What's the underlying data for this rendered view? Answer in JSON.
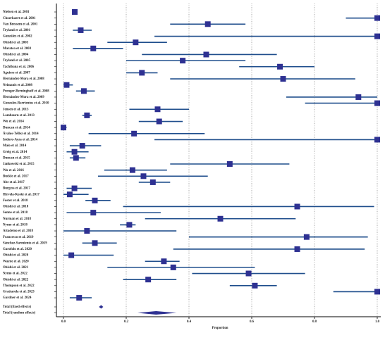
{
  "chart_data": {
    "type": "forest",
    "x_label": "Proportion",
    "categories": [
      "Nielsen et al. 2001",
      "Choerkaert et al. 2001",
      "Van Bressem et al. 2001",
      "Tryland et al. 2001",
      "González et al. 2002",
      "Ohishi et al. 2003",
      "Maratea et al. 2003",
      "Ohishi et al. 2004",
      "Tryland et al. 2005",
      "Tachibana et al. 2006",
      "Aguirre et al. 2007",
      "Hernández-Mora et al. 2008",
      "Neimanis et al. 2008",
      "Prenger-Berninghoff et al. 2008",
      "Hernández-Mora et al. 2009",
      "Gonzalez-Barrientos et al. 2010",
      "Jensen et al. 2013",
      "Lambourn et al. 2013",
      "Wu et al. 2014",
      "Duncan et al. 2014",
      "Ávalos-Téllez et al. 2014",
      "Isidoro-Ayza et al. 2014",
      "Maio et al. 2014",
      "Greig et al. 2014",
      "Duncan et al. 2015",
      "Jankowski et al. 2015",
      "Wu et al. 2016",
      "Buckle et al. 2017",
      "Abe et al. 2017",
      "Burgess et al. 2017",
      "Hirvela-Koski et al. 2017",
      "Foster et al. 2018",
      "Ohishi et al. 2018",
      "Sonne et al. 2018",
      "Nurman et al. 2018",
      "Nymo et al. 2018",
      "Attademo et al. 2018",
      "Francesco et al. 2019",
      "Sánchez-Sarmiento et al. 2019",
      "Garofolo et al. 2020",
      "Ohishi et al. 2020",
      "Wayne et al. 2020",
      "Ohishi et al. 2021",
      "Nymo et al. 2022",
      "Ohishi et al. 2022",
      "Thompson et al. 2022",
      "Grattarola et al. 2023",
      "Gardner et al. 2024"
    ],
    "values": [
      0.036,
      1.0,
      0.46,
      0.055,
      1.0,
      0.23,
      0.095,
      0.455,
      0.38,
      0.69,
      0.25,
      0.7,
      0.01,
      0.065,
      0.94,
      1.0,
      0.3,
      0.075,
      0.305,
      0.0,
      0.225,
      1.0,
      0.06,
      0.035,
      0.04,
      0.53,
      0.22,
      0.255,
      0.285,
      0.035,
      0.02,
      0.1,
      0.745,
      0.095,
      0.5,
      0.21,
      0.075,
      0.775,
      0.1,
      0.745,
      0.025,
      0.32,
      0.35,
      0.59,
      0.27,
      0.61,
      1.0,
      0.05
    ],
    "ci_lower": [
      0.03,
      0.9,
      0.34,
      0.03,
      0.29,
      0.14,
      0.03,
      0.25,
      0.2,
      0.56,
      0.2,
      0.34,
      0.0,
      0.04,
      0.71,
      0.77,
      0.21,
      0.06,
      0.24,
      0.0,
      0.08,
      0.29,
      0.02,
      0.01,
      0.02,
      0.34,
      0.13,
      0.11,
      0.24,
      0.01,
      0.0,
      0.07,
      0.19,
      0.01,
      0.26,
      0.18,
      0.0,
      0.4,
      0.06,
      0.35,
      0.0,
      0.26,
      0.14,
      0.41,
      0.19,
      0.53,
      0.86,
      0.02
    ],
    "ci_upper": [
      0.04,
      1.0,
      0.58,
      0.09,
      1.0,
      0.33,
      0.19,
      0.68,
      0.58,
      0.8,
      0.3,
      0.93,
      0.03,
      0.1,
      1.0,
      1.0,
      0.4,
      0.09,
      0.38,
      0.01,
      0.45,
      1.0,
      0.12,
      0.08,
      0.07,
      0.72,
      0.33,
      0.46,
      0.34,
      0.09,
      0.08,
      0.15,
      0.99,
      0.31,
      0.74,
      0.23,
      0.36,
      0.97,
      0.17,
      0.96,
      0.16,
      0.37,
      0.61,
      0.77,
      0.36,
      0.68,
      1.0,
      0.09
    ],
    "summary": [
      {
        "name": "Total (fixed effects)",
        "value": 0.12,
        "lower": 0.113,
        "upper": 0.127
      },
      {
        "name": "Total (random effects)",
        "value": 0.295,
        "lower": 0.236,
        "upper": 0.36
      }
    ],
    "square_color": "#2e3192",
    "line_color": "#1f4e8c",
    "xlim": [
      0,
      1
    ],
    "xticks": [
      {
        "value": 0,
        "label": "0.0"
      },
      0.2,
      0.4,
      0.6,
      0.8,
      {
        "value": 1,
        "label": "1.0"
      }
    ],
    "grid": true
  }
}
